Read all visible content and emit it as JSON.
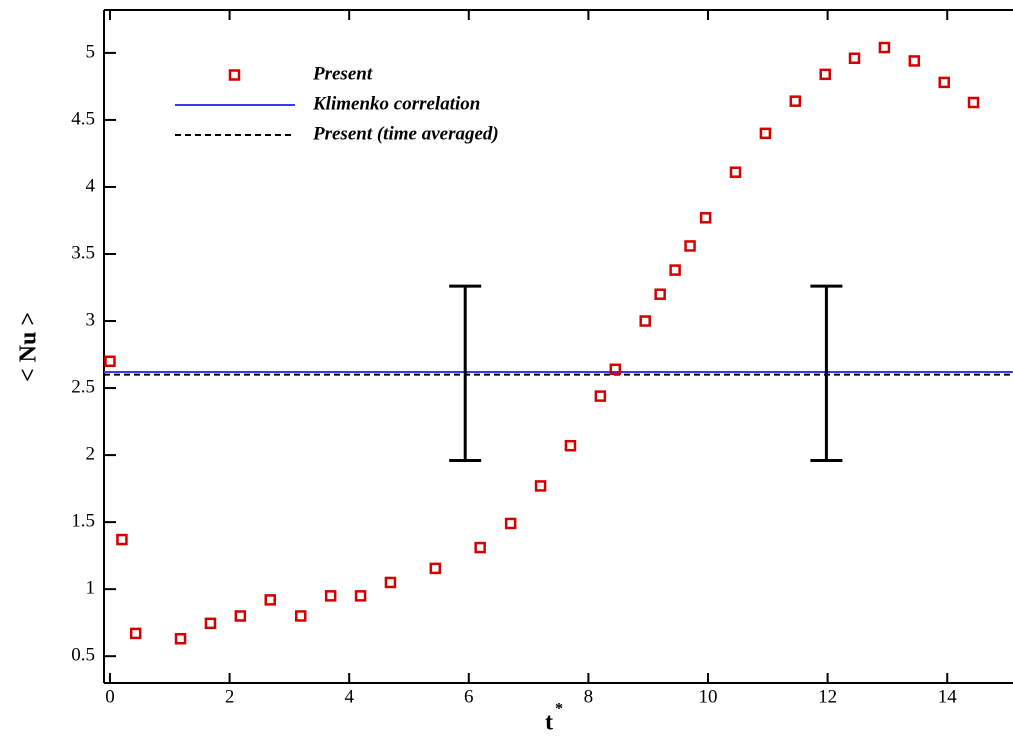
{
  "chart_data": {
    "type": "scatter",
    "x_label": "t",
    "x_label_sup": "*",
    "y_label": "< Nu >",
    "xlim": [
      -0.1,
      15.1
    ],
    "ylim": [
      0.3,
      5.32
    ],
    "xticks": [
      0,
      2,
      4,
      6,
      8,
      10,
      12,
      14
    ],
    "yticks": [
      0.5,
      1,
      1.5,
      2,
      2.5,
      3,
      3.5,
      4,
      4.5,
      5
    ],
    "series": [
      {
        "name": "Present",
        "color": "#d40000",
        "x": [
          0,
          0.2,
          0.43,
          1.18,
          1.68,
          2.18,
          2.68,
          3.19,
          3.69,
          4.19,
          4.69,
          5.44,
          6.19,
          6.7,
          7.2,
          7.7,
          8.2,
          8.45,
          8.95,
          9.2,
          9.45,
          9.7,
          9.96,
          10.46,
          10.96,
          11.46,
          11.96,
          12.45,
          12.95,
          13.45,
          13.95,
          14.44
        ],
        "values": [
          2.7,
          1.37,
          0.67,
          0.63,
          0.745,
          0.8,
          0.92,
          0.8,
          0.95,
          0.95,
          1.05,
          1.155,
          1.31,
          1.49,
          1.77,
          2.07,
          2.44,
          2.64,
          3.0,
          3.2,
          3.38,
          3.56,
          3.77,
          4.11,
          4.4,
          4.64,
          4.84,
          4.96,
          5.04,
          4.94,
          4.78,
          4.63
        ]
      }
    ],
    "reference_lines": [
      {
        "name": "Klimenko correlation",
        "color": "#3a3af0",
        "value": 2.62,
        "dashed": false
      },
      {
        "name": "Present (time averaged)",
        "color": "#000000",
        "value": 2.6,
        "dashed": true
      }
    ],
    "error_bars": [
      {
        "x": 5.94,
        "value": 2.61,
        "error": 0.65
      },
      {
        "x": 11.98,
        "value": 2.61,
        "error": 0.65
      }
    ]
  }
}
